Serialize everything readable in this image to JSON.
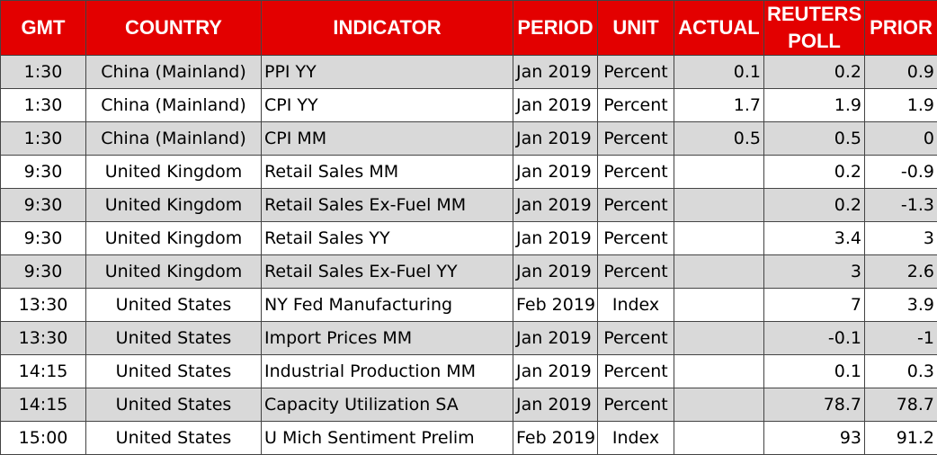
{
  "table": {
    "header": [
      "GMT",
      "COUNTRY",
      "INDICATOR",
      "PERIOD",
      "UNIT",
      "ACTUAL",
      "REUTERS POLL",
      "PRIOR"
    ],
    "rows": [
      [
        "1:30",
        "China (Mainland)",
        "PPI YY",
        "Jan 2019",
        "Percent",
        "0.1",
        "0.2",
        "0.9"
      ],
      [
        "1:30",
        "China (Mainland)",
        "CPI YY",
        "Jan 2019",
        "Percent",
        "1.7",
        "1.9",
        "1.9"
      ],
      [
        "1:30",
        "China (Mainland)",
        "CPI MM",
        "Jan 2019",
        "Percent",
        "0.5",
        "0.5",
        "0"
      ],
      [
        "9:30",
        "United Kingdom",
        "Retail Sales MM",
        "Jan 2019",
        "Percent",
        null,
        "0.2",
        "-0.9"
      ],
      [
        "9:30",
        "United Kingdom",
        "Retail Sales Ex-Fuel MM",
        "Jan 2019",
        "Percent",
        null,
        "0.2",
        "-1.3"
      ],
      [
        "9:30",
        "United Kingdom",
        "Retail Sales YY",
        "Jan 2019",
        "Percent",
        null,
        "3.4",
        "3"
      ],
      [
        "9:30",
        "United Kingdom",
        "Retail Sales Ex-Fuel YY",
        "Jan 2019",
        "Percent",
        null,
        "3",
        "2.6"
      ],
      [
        "13:30",
        "United States",
        "NY Fed Manufacturing",
        "Feb 2019",
        "Index",
        null,
        "7",
        "3.9"
      ],
      [
        "13:30",
        "United States",
        "Import Prices MM",
        "Jan 2019",
        "Percent",
        null,
        "-0.1",
        "-1"
      ],
      [
        "14:15",
        "United States",
        "Industrial Production MM",
        "Jan 2019",
        "Percent",
        null,
        "0.1",
        "0.3"
      ],
      [
        "14:15",
        "United States",
        "Capacity Utilization SA",
        "Jan 2019",
        "Percent",
        null,
        "78.7",
        "78.7"
      ],
      [
        "15:00",
        "United States",
        "U Mich Sentiment Prelim",
        "Feb 2019",
        "Index",
        null,
        "93",
        "91.2"
      ]
    ]
  }
}
